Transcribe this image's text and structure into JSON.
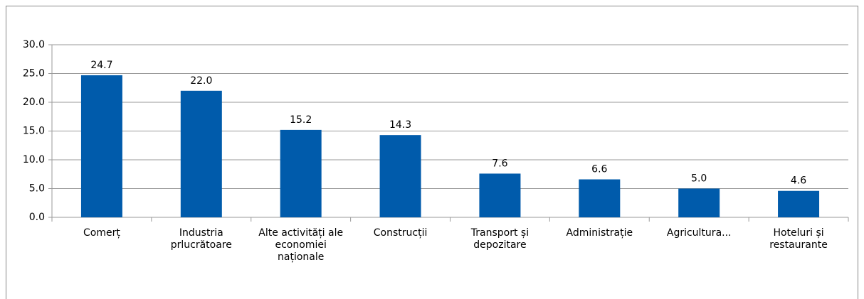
{
  "chart_data": {
    "type": "bar",
    "categories": [
      "Comerț",
      "Industria prlucrătoare",
      "Alte activități ale economiei naționale",
      "Construcții",
      "Transport și depozitare",
      "Administrație",
      "Agricultura...",
      "Hoteluri și restaurante"
    ],
    "values": [
      24.7,
      22.0,
      15.2,
      14.3,
      7.6,
      6.6,
      5.0,
      4.6
    ],
    "value_labels": [
      "24.7",
      "22.0",
      "15.2",
      "14.3",
      "7.6",
      "6.6",
      "5.0",
      "4.6"
    ],
    "color": "#005bab",
    "ylim": [
      0,
      30
    ],
    "yticks": [
      {
        "value": 0,
        "label": "0.0"
      },
      {
        "value": 5,
        "label": "5.0"
      },
      {
        "value": 10,
        "label": "10.0"
      },
      {
        "value": 15,
        "label": "15.0"
      },
      {
        "value": 20,
        "label": "20.0"
      },
      {
        "value": 25,
        "label": "25.0"
      },
      {
        "value": 30,
        "label": "30.0"
      }
    ],
    "grid": true
  }
}
